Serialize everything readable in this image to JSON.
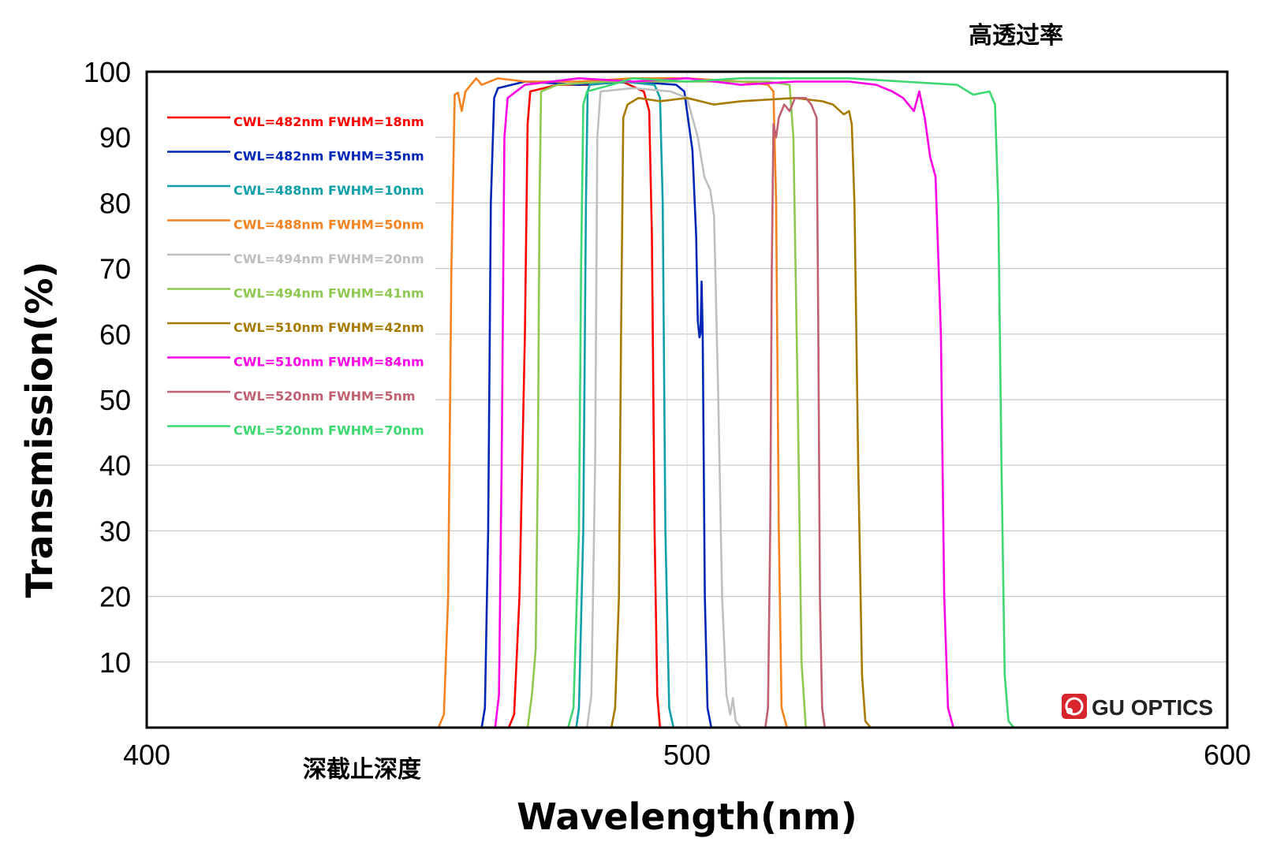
{
  "chart_data": {
    "type": "line",
    "title": "",
    "xlabel": "Wavelength(nm)",
    "ylabel": "Transmission(%)",
    "xlim": [
      400,
      600
    ],
    "ylim": [
      0,
      100
    ],
    "x_ticks": [
      400,
      500,
      600
    ],
    "y_ticks": [
      10,
      20,
      30,
      40,
      50,
      60,
      70,
      80,
      90,
      100
    ],
    "grid": "horizontal",
    "legend_position": "top-left",
    "annotations": {
      "high_transmission": "高透过率",
      "deep_blocking": "深截止深度"
    },
    "logo": "GU OPTICS",
    "series": [
      {
        "name": "CWL=482nm FWHM=18nm",
        "color": "#ff0000",
        "points": [
          [
            400,
            0
          ],
          [
            467,
            0
          ],
          [
            468,
            2
          ],
          [
            469,
            20
          ],
          [
            470,
            60
          ],
          [
            470.5,
            92
          ],
          [
            471,
            97
          ],
          [
            476,
            98
          ],
          [
            482,
            98
          ],
          [
            488,
            98.5
          ],
          [
            492,
            97
          ],
          [
            493,
            94
          ],
          [
            493.5,
            75
          ],
          [
            494,
            30
          ],
          [
            494.5,
            5
          ],
          [
            495,
            0
          ],
          [
            600,
            0
          ]
        ]
      },
      {
        "name": "CWL=482nm FWHM=35nm",
        "color": "#0026b8",
        "points": [
          [
            400,
            0
          ],
          [
            462,
            0
          ],
          [
            462.6,
            3
          ],
          [
            463.2,
            30
          ],
          [
            463.7,
            80
          ],
          [
            464.3,
            96
          ],
          [
            465,
            97.5
          ],
          [
            470,
            98.5
          ],
          [
            480,
            98
          ],
          [
            490,
            98.5
          ],
          [
            498,
            98
          ],
          [
            499.5,
            97
          ],
          [
            500,
            94
          ],
          [
            501,
            88
          ],
          [
            501.7,
            75
          ],
          [
            502,
            62
          ],
          [
            502.3,
            59.5
          ],
          [
            502.5,
            60
          ],
          [
            502.7,
            68
          ],
          [
            502.9,
            60
          ],
          [
            503.3,
            20
          ],
          [
            503.8,
            3
          ],
          [
            504.5,
            0
          ],
          [
            600,
            0
          ]
        ]
      },
      {
        "name": "CWL=488nm FWHM=10nm",
        "color": "#10a0a8",
        "points": [
          [
            400,
            0
          ],
          [
            479.5,
            0
          ],
          [
            480,
            3
          ],
          [
            480.8,
            30
          ],
          [
            481.3,
            80
          ],
          [
            481.6,
            97
          ],
          [
            482,
            98
          ],
          [
            488,
            98.5
          ],
          [
            494,
            98
          ],
          [
            495,
            96
          ],
          [
            495.5,
            80
          ],
          [
            496,
            30
          ],
          [
            496.7,
            3
          ],
          [
            497.5,
            0
          ],
          [
            600,
            0
          ]
        ]
      },
      {
        "name": "CWL=488nm FWHM=50nm",
        "color": "#f5821f",
        "points": [
          [
            400,
            0
          ],
          [
            454,
            0
          ],
          [
            455,
            2
          ],
          [
            455.8,
            20
          ],
          [
            456.4,
            70
          ],
          [
            457,
            96.5
          ],
          [
            457.6,
            96.8
          ],
          [
            458.3,
            94
          ],
          [
            459,
            97
          ],
          [
            460,
            98
          ],
          [
            461,
            99
          ],
          [
            462,
            98
          ],
          [
            465,
            99
          ],
          [
            470,
            98.5
          ],
          [
            480,
            98.5
          ],
          [
            490,
            99
          ],
          [
            500,
            99
          ],
          [
            510,
            98.5
          ],
          [
            515,
            98
          ],
          [
            516,
            97
          ],
          [
            516.5,
            80
          ],
          [
            517,
            30
          ],
          [
            517.5,
            3
          ],
          [
            518.5,
            0
          ],
          [
            600,
            0
          ]
        ]
      },
      {
        "name": "CWL=494nm FWHM=20nm",
        "color": "#bfbfbf",
        "points": [
          [
            400,
            0
          ],
          [
            481.5,
            0
          ],
          [
            482.3,
            5
          ],
          [
            483,
            40
          ],
          [
            483.4,
            90
          ],
          [
            484,
            97
          ],
          [
            490,
            97.5
          ],
          [
            497,
            97
          ],
          [
            500,
            96
          ],
          [
            502,
            90
          ],
          [
            503.2,
            84
          ],
          [
            504.3,
            82
          ],
          [
            505,
            78
          ],
          [
            505.8,
            50
          ],
          [
            506.5,
            20
          ],
          [
            507.3,
            5
          ],
          [
            508,
            2
          ],
          [
            508.5,
            4.5
          ],
          [
            509,
            1
          ],
          [
            510,
            0
          ],
          [
            600,
            0
          ]
        ]
      },
      {
        "name": "CWL=494nm FWHM=41nm",
        "color": "#8fc850",
        "points": [
          [
            400,
            0
          ],
          [
            470.5,
            0
          ],
          [
            471.3,
            5
          ],
          [
            472,
            12
          ],
          [
            472.4,
            40
          ],
          [
            472.7,
            80
          ],
          [
            473,
            97
          ],
          [
            476,
            98
          ],
          [
            485,
            98.5
          ],
          [
            500,
            98.5
          ],
          [
            515,
            98.5
          ],
          [
            519,
            98
          ],
          [
            519.7,
            90
          ],
          [
            520.5,
            50
          ],
          [
            521.2,
            10
          ],
          [
            522,
            0
          ],
          [
            600,
            0
          ]
        ]
      },
      {
        "name": "CWL=510nm FWHM=42nm",
        "color": "#a87a00",
        "points": [
          [
            400,
            0
          ],
          [
            486,
            0
          ],
          [
            486.7,
            3
          ],
          [
            487.4,
            20
          ],
          [
            487.8,
            60
          ],
          [
            488.2,
            93
          ],
          [
            489,
            95
          ],
          [
            491,
            96
          ],
          [
            495,
            95.5
          ],
          [
            500,
            96
          ],
          [
            505,
            95
          ],
          [
            510,
            95.5
          ],
          [
            520,
            96
          ],
          [
            525,
            95.5
          ],
          [
            527,
            95
          ],
          [
            529,
            93.5
          ],
          [
            530,
            94
          ],
          [
            530.5,
            92
          ],
          [
            531,
            80
          ],
          [
            531.7,
            40
          ],
          [
            532.4,
            8
          ],
          [
            533,
            1
          ],
          [
            534,
            0
          ],
          [
            600,
            0
          ]
        ]
      },
      {
        "name": "CWL=510nm FWHM=84nm",
        "color": "#ff00e6",
        "points": [
          [
            400,
            0
          ],
          [
            464.5,
            0
          ],
          [
            465.2,
            5
          ],
          [
            465.7,
            40
          ],
          [
            466.2,
            90
          ],
          [
            466.8,
            96
          ],
          [
            470,
            98
          ],
          [
            480,
            99
          ],
          [
            490,
            98.5
          ],
          [
            500,
            99
          ],
          [
            510,
            98
          ],
          [
            520,
            98.5
          ],
          [
            530,
            98.5
          ],
          [
            535,
            98
          ],
          [
            538,
            97
          ],
          [
            540,
            96
          ],
          [
            542,
            94
          ],
          [
            543,
            97
          ],
          [
            544,
            93
          ],
          [
            545,
            87
          ],
          [
            546,
            84
          ],
          [
            547,
            60
          ],
          [
            547.6,
            20
          ],
          [
            548.3,
            3
          ],
          [
            549.3,
            0
          ],
          [
            600,
            0
          ]
        ]
      },
      {
        "name": "CWL=520nm FWHM=5nm",
        "color": "#c06070",
        "points": [
          [
            400,
            0
          ],
          [
            514.5,
            0
          ],
          [
            515,
            3
          ],
          [
            515.4,
            30
          ],
          [
            515.7,
            70
          ],
          [
            516,
            92
          ],
          [
            516.5,
            90
          ],
          [
            517,
            93
          ],
          [
            518,
            95
          ],
          [
            519,
            94
          ],
          [
            520,
            96
          ],
          [
            522,
            96
          ],
          [
            523,
            95
          ],
          [
            524,
            93
          ],
          [
            524.3,
            60
          ],
          [
            524.6,
            20
          ],
          [
            525,
            3
          ],
          [
            525.5,
            0
          ],
          [
            600,
            0
          ]
        ]
      },
      {
        "name": "CWL=520nm FWHM=70nm",
        "color": "#3dd870",
        "points": [
          [
            400,
            0
          ],
          [
            478,
            0
          ],
          [
            479,
            3
          ],
          [
            480,
            30
          ],
          [
            480.4,
            70
          ],
          [
            480.8,
            95
          ],
          [
            481.5,
            97
          ],
          [
            486,
            98
          ],
          [
            490,
            99
          ],
          [
            500,
            98.5
          ],
          [
            510,
            99
          ],
          [
            520,
            99
          ],
          [
            530,
            99
          ],
          [
            540,
            98.5
          ],
          [
            550,
            98
          ],
          [
            553,
            96.5
          ],
          [
            556,
            97
          ],
          [
            557,
            95
          ],
          [
            557.6,
            80
          ],
          [
            558.2,
            40
          ],
          [
            558.8,
            8
          ],
          [
            559.5,
            1
          ],
          [
            560.5,
            0
          ],
          [
            600,
            0
          ]
        ]
      }
    ]
  }
}
